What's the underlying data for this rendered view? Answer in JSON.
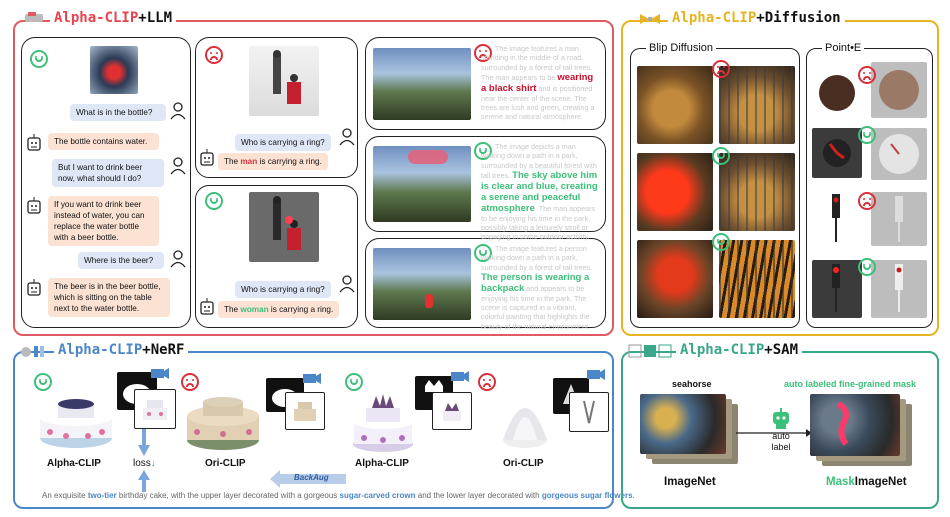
{
  "llm": {
    "title_brand": "Alpha-CLIP",
    "title_suffix": "+LLM",
    "chat": [
      {
        "role": "user",
        "text": "What is in the bottle?"
      },
      {
        "role": "bot",
        "text": "The bottle contains water."
      },
      {
        "role": "user",
        "text": "But I want to drink beer now, what should I do?"
      },
      {
        "role": "bot",
        "text": "If you want to drink beer instead of water, you can replace the water bottle with a beer bottle."
      },
      {
        "role": "user",
        "text": "Where is the beer?"
      },
      {
        "role": "bot",
        "text": "The beer is in the beer bottle, which is sitting on the table next to the water bottle."
      }
    ],
    "ring_top": {
      "question": "Who is carrying a ring?",
      "answer_pre": "The ",
      "answer_hl": "man",
      "answer_post": " is carrying a ring."
    },
    "ring_bottom": {
      "question": "Who is carrying a ring?",
      "answer_pre": "The ",
      "answer_hl": "woman",
      "answer_post": " is carrying a ring."
    },
    "forest_captions": [
      {
        "pre": "The image features a man standing in the middle of a road, surrounded by a forest of tall trees. The man appears to be ",
        "hl": "wearing a black shirt",
        "post": " and is positioned near the center of the scene. The trees are lush and green, creating a serene and natural atmosphere.",
        "tone": "red"
      },
      {
        "pre": "The image depicts a man walking down a path in a park, surrounded by a beautiful forest with tall trees. ",
        "hl": "The sky above him is clear and blue, creating a serene and peaceful atmosphere",
        "post": ". The man appears to be enjoying his time in the park, possibly taking a leisurely stroll or engaging in some outdoor activity.",
        "tone": "green"
      },
      {
        "pre": "The image features a person walking down a path in a park, surrounded by a forest of tall trees. ",
        "hl": "The person is wearing a backpack",
        "post": " and appears to be enjoying his time in the park. The scene is captured in a vibrant, colorful painting that highlights the beauty of the natural environment.",
        "tone": "green"
      }
    ]
  },
  "diffusion": {
    "title_brand": "Alpha-CLIP",
    "title_suffix": "+Diffusion",
    "blip_label": "Blip Diffusion",
    "pointe_label": "Point•E"
  },
  "nerf": {
    "title_brand": "Alpha-CLIP",
    "title_suffix": "+NeRF",
    "labels": [
      "Alpha-CLIP",
      "Ori-CLIP",
      "Alpha-CLIP",
      "Ori-CLIP"
    ],
    "loss": "loss",
    "backaug": "BackAug",
    "caption_parts": [
      {
        "text": "An exquisite ",
        "style": "plain"
      },
      {
        "text": "two-tier",
        "style": "blue"
      },
      {
        "text": " birthday cake, with the upper layer decorated with a gorgeous ",
        "style": "plain"
      },
      {
        "text": "sugar-carved crown",
        "style": "blue"
      },
      {
        "text": " and the lower layer decorated with ",
        "style": "plain"
      },
      {
        "text": "gorgeous sugar flowers",
        "style": "blue"
      },
      {
        "text": ".",
        "style": "plain"
      }
    ]
  },
  "sam": {
    "title_brand": "Alpha-CLIP",
    "title_suffix": "+SAM",
    "seahorse": "seahorse",
    "auto_mask": "auto labeled fine-grained mask",
    "auto_label": "auto\nlabel",
    "imagenet": "ImageNet",
    "mask_prefix": "Mask",
    "mask_suffix": "ImageNet"
  },
  "colors": {
    "red": "#d9303b",
    "green": "#3dbf7a",
    "blue": "#4a86c8",
    "gold": "#e6b422",
    "brand_red": "#e8434d",
    "teal": "#3aa68a"
  }
}
